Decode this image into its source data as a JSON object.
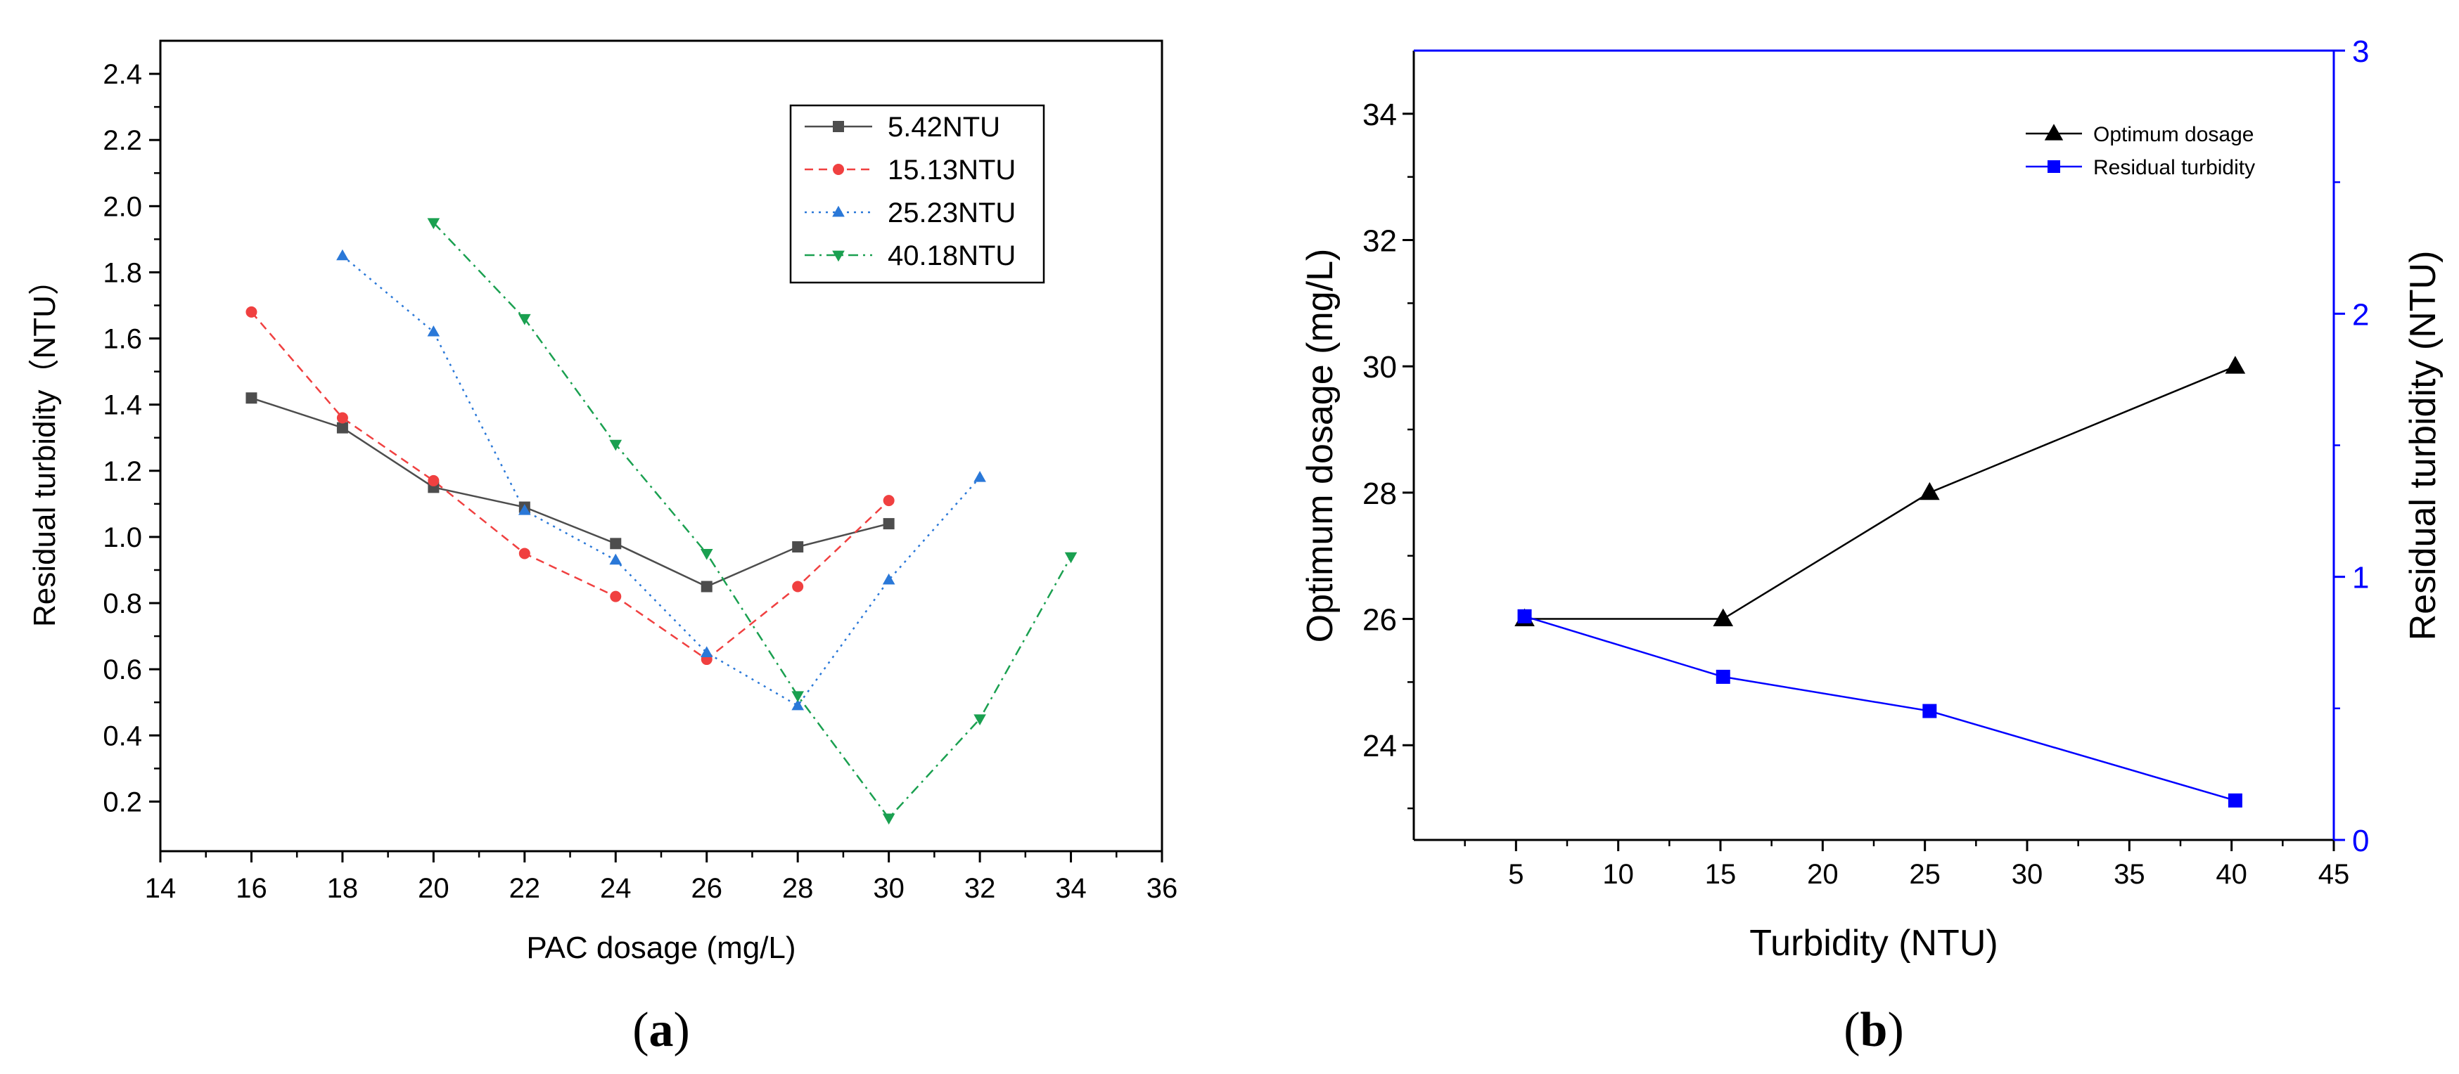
{
  "chart_data": [
    {
      "type": "line",
      "panel": "(a)",
      "panel_letter": "a",
      "xlabel": "PAC dosage (mg/L)",
      "ylabel": "Residual turbidity（NTU）",
      "xlim": [
        14,
        36
      ],
      "ylim": [
        0.05,
        2.5
      ],
      "xticks": [
        14,
        16,
        18,
        20,
        22,
        24,
        26,
        28,
        30,
        32,
        34,
        36
      ],
      "yticks": [
        0.2,
        0.4,
        0.6,
        0.8,
        1.0,
        1.2,
        1.4,
        1.6,
        1.8,
        2.0,
        2.2,
        2.4
      ],
      "legend_position": "top-right",
      "series": [
        {
          "name": "5.42NTU",
          "color": "#4d4d4d",
          "marker": "square",
          "dash": "solid",
          "x": [
            16,
            18,
            20,
            22,
            24,
            26,
            28,
            30
          ],
          "y": [
            1.42,
            1.33,
            1.15,
            1.09,
            0.98,
            0.85,
            0.97,
            1.04
          ]
        },
        {
          "name": "15.13NTU",
          "color": "#f04040",
          "marker": "circle",
          "dash": "dashed",
          "x": [
            16,
            18,
            20,
            22,
            24,
            26,
            28,
            30
          ],
          "y": [
            1.68,
            1.36,
            1.17,
            0.95,
            0.82,
            0.63,
            0.85,
            1.11
          ]
        },
        {
          "name": "25.23NTU",
          "color": "#2a78d8",
          "marker": "triangle-up",
          "dash": "dotted",
          "x": [
            18,
            20,
            22,
            24,
            26,
            28,
            30,
            32
          ],
          "y": [
            1.85,
            1.62,
            1.08,
            0.93,
            0.65,
            0.49,
            0.87,
            1.18
          ]
        },
        {
          "name": "40.18NTU",
          "color": "#1aa050",
          "marker": "triangle-down",
          "dash": "dashdot",
          "x": [
            20,
            22,
            24,
            26,
            28,
            30,
            32,
            34
          ],
          "y": [
            1.95,
            1.66,
            1.28,
            0.95,
            0.52,
            0.15,
            0.45,
            0.94
          ]
        }
      ]
    },
    {
      "type": "line",
      "panel": "(b)",
      "panel_letter": "b",
      "xlabel": "Turbidity (NTU)",
      "ylabel": "Optimum dosage (mg/L)",
      "y2label": "Residual turbidity (NTU)",
      "xlim": [
        0,
        45
      ],
      "ylim": [
        22.5,
        35
      ],
      "y2lim": [
        0,
        3
      ],
      "xticks": [
        5,
        10,
        15,
        20,
        25,
        30,
        35,
        40,
        45
      ],
      "yticks": [
        24,
        26,
        28,
        30,
        32,
        34
      ],
      "y2ticks": [
        0,
        1,
        2,
        3
      ],
      "legend_position": "top-right",
      "series": [
        {
          "name": "Optimum dosage",
          "axis": "left",
          "color": "#000000",
          "marker": "triangle-up",
          "x": [
            5.42,
            15.13,
            25.23,
            40.18
          ],
          "y": [
            26,
            26,
            28,
            30
          ]
        },
        {
          "name": "Residual turbidity",
          "axis": "right",
          "color": "#0000ff",
          "marker": "square",
          "x": [
            5.42,
            15.13,
            25.23,
            40.18
          ],
          "y": [
            0.85,
            0.62,
            0.49,
            0.15
          ]
        }
      ]
    }
  ]
}
